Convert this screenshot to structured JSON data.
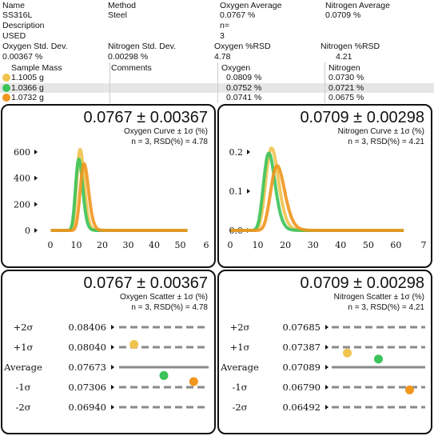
{
  "header": {
    "name_label": "Name",
    "name_value": "SS316L",
    "method_label": "Method",
    "method_value": "Steel",
    "oxygen_avg_label": "Oxygen Average",
    "oxygen_avg_value": "0.0767 %",
    "nitrogen_avg_label": "Nitrogen Average",
    "nitrogen_avg_value": "0.0709 %",
    "description_label": "Description",
    "n_label": "n=",
    "n_value": "3",
    "used_label": "USED",
    "oxygen_sd_label": "Oxygen Std. Dev.",
    "oxygen_sd_value": "0.00367 %",
    "nitrogen_sd_label": "Nitrogen Std. Dev.",
    "nitrogen_sd_value": "0.00298 %",
    "oxygen_rsd_label": "Oxygen %RSD",
    "oxygen_rsd_value": "4.78",
    "nitrogen_rsd_label": "Nitrogen %RSD",
    "nitrogen_rsd_value": "4.21"
  },
  "table": {
    "headers": [
      "Sample Mass",
      "Comments",
      "Oxygen",
      "Nitrogen"
    ],
    "rows": [
      {
        "mass": "1.1005 g",
        "comments": "",
        "oxygen": "0.0809 %",
        "nitrogen": "0.0730 %",
        "color": "#f0c34e"
      },
      {
        "mass": "1.0366 g",
        "comments": "",
        "oxygen": "0.0752 %",
        "nitrogen": "0.0721 %",
        "color": "#3cc35a"
      },
      {
        "mass": "1.0732 g",
        "comments": "",
        "oxygen": "0.0741 %",
        "nitrogen": "0.0675 %",
        "color": "#f0961e"
      }
    ]
  },
  "panels": {
    "oxygen_curve": {
      "value": "0.0767 ± 0.00367",
      "title": "Oxygen Curve ± 1σ (%)",
      "stats": "n = 3, RSD(%) = 4.78"
    },
    "nitrogen_curve": {
      "value": "0.0709 ± 0.00298",
      "title": "Nitrogen Curve ± 1σ (%)",
      "stats": "n = 3, RSD(%) = 4.21"
    },
    "oxygen_scatter": {
      "value": "0.0767 ± 0.00367",
      "title": "Oxygen Scatter ± 1σ (%)",
      "stats": "n = 3, RSD(%) = 4.78"
    },
    "nitrogen_scatter": {
      "value": "0.0709 ± 0.00298",
      "title": "Nitrogen Scatter ± 1σ (%)",
      "stats": "n = 3, RSD(%) = 4.21"
    }
  },
  "chart_data": [
    {
      "type": "line",
      "name": "oxygen_curve",
      "title": "Oxygen Curve ± 1σ (%)",
      "xticks": [
        "0",
        "10",
        "20",
        "30",
        "40",
        "50",
        "6"
      ],
      "yticks": [
        "0",
        "200",
        "400",
        "600"
      ],
      "xlim": [
        0,
        60
      ],
      "ylim": [
        0,
        600
      ],
      "series": [
        {
          "color": "#f0c34e",
          "peak_x": 11.5,
          "peak_y": 620,
          "width": 2.6
        },
        {
          "color": "#3cc35a",
          "peak_x": 11,
          "peak_y": 545,
          "width": 2.5
        },
        {
          "color": "#f0961e",
          "peak_x": 13,
          "peak_y": 510,
          "width": 2.9
        }
      ],
      "baseline_until": 53
    },
    {
      "type": "line",
      "name": "nitrogen_curve",
      "title": "Nitrogen Curve ± 1σ (%)",
      "xticks": [
        "0",
        "10",
        "20",
        "30",
        "40",
        "50",
        "60",
        "7"
      ],
      "yticks": [
        "0.0",
        "0.1",
        "0.2"
      ],
      "xlim": [
        0,
        70
      ],
      "ylim": [
        0,
        0.2
      ],
      "series": [
        {
          "color": "#f0c34e",
          "peak_x": 15,
          "peak_y": 0.21,
          "width": 4.2
        },
        {
          "color": "#3cc35a",
          "peak_x": 14,
          "peak_y": 0.197,
          "width": 3.8
        },
        {
          "color": "#f0961e",
          "peak_x": 17,
          "peak_y": 0.165,
          "width": 4.6
        }
      ],
      "baseline_until": 63
    },
    {
      "type": "scatter",
      "name": "oxygen_scatter",
      "title": "Oxygen Scatter ± 1σ (%)",
      "levels": [
        {
          "label": "+2σ",
          "value": "0.08406"
        },
        {
          "label": "+1σ",
          "value": "0.08040"
        },
        {
          "label": "Average",
          "value": "0.07673"
        },
        {
          "label": "-1σ",
          "value": "0.07306"
        },
        {
          "label": "-2σ",
          "value": "0.06940"
        }
      ],
      "points": [
        {
          "sample": 1,
          "value": 0.0809,
          "color": "#f0c34e"
        },
        {
          "sample": 2,
          "value": 0.0752,
          "color": "#3cc35a"
        },
        {
          "sample": 3,
          "value": 0.0741,
          "color": "#f0961e"
        }
      ],
      "ylim": [
        0.0694,
        0.08406
      ]
    },
    {
      "type": "scatter",
      "name": "nitrogen_scatter",
      "title": "Nitrogen Scatter ± 1σ (%)",
      "levels": [
        {
          "label": "+2σ",
          "value": "0.07685"
        },
        {
          "label": "+1σ",
          "value": "0.07387"
        },
        {
          "label": "Average",
          "value": "0.07089"
        },
        {
          "label": "-1σ",
          "value": "0.06790"
        },
        {
          "label": "-2σ",
          "value": "0.06492"
        }
      ],
      "points": [
        {
          "sample": 1,
          "value": 0.073,
          "color": "#f0c34e"
        },
        {
          "sample": 2,
          "value": 0.0721,
          "color": "#3cc35a"
        },
        {
          "sample": 3,
          "value": 0.0675,
          "color": "#f0961e"
        }
      ],
      "ylim": [
        0.06492,
        0.07685
      ]
    }
  ]
}
